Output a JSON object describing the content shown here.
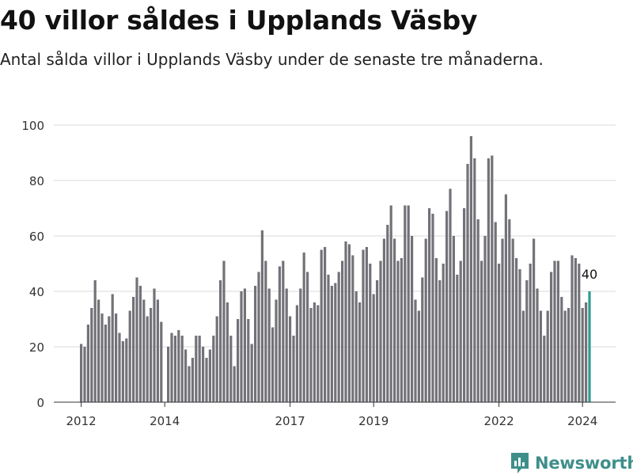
{
  "title": "40 villor såldes i Upplands Väsby",
  "subtitle": "Antal sålda villor i Upplands Väsby under de senaste tre månaderna.",
  "brand": "Newsworthy",
  "colors": {
    "bar": "#737278",
    "highlight": "#2b9c93",
    "grid": "#d9d9d9",
    "brand": "#3e8f8a"
  },
  "chart_data": {
    "type": "bar",
    "x_ticks": [
      "2012",
      "2014",
      "2017",
      "2019",
      "2022",
      "2024"
    ],
    "y_ticks": [
      0,
      20,
      40,
      60,
      80,
      100
    ],
    "ylim": [
      0,
      100
    ],
    "highlight_label": "40",
    "values": [
      21,
      20,
      28,
      34,
      44,
      37,
      32,
      28,
      31,
      39,
      32,
      25,
      22,
      23,
      33,
      38,
      45,
      42,
      37,
      31,
      34,
      41,
      37,
      29,
      0,
      20,
      25,
      24,
      26,
      24,
      19,
      13,
      16,
      24,
      24,
      20,
      16,
      19,
      24,
      31,
      44,
      51,
      36,
      24,
      13,
      30,
      40,
      41,
      30,
      21,
      42,
      47,
      62,
      51,
      41,
      27,
      37,
      49,
      51,
      41,
      31,
      24,
      35,
      41,
      54,
      47,
      34,
      36,
      35,
      55,
      56,
      46,
      42,
      43,
      47,
      51,
      58,
      57,
      53,
      40,
      36,
      55,
      56,
      50,
      39,
      44,
      51,
      59,
      64,
      71,
      59,
      51,
      52,
      71,
      71,
      60,
      37,
      33,
      45,
      59,
      70,
      68,
      52,
      44,
      50,
      69,
      77,
      60,
      46,
      51,
      70,
      86,
      96,
      88,
      66,
      51,
      60,
      88,
      89,
      65,
      50,
      59,
      75,
      66,
      59,
      52,
      48,
      33,
      44,
      50,
      59,
      41,
      33,
      24,
      33,
      47,
      51,
      51,
      38,
      33,
      34,
      53,
      52,
      50,
      34,
      36,
      40
    ]
  }
}
